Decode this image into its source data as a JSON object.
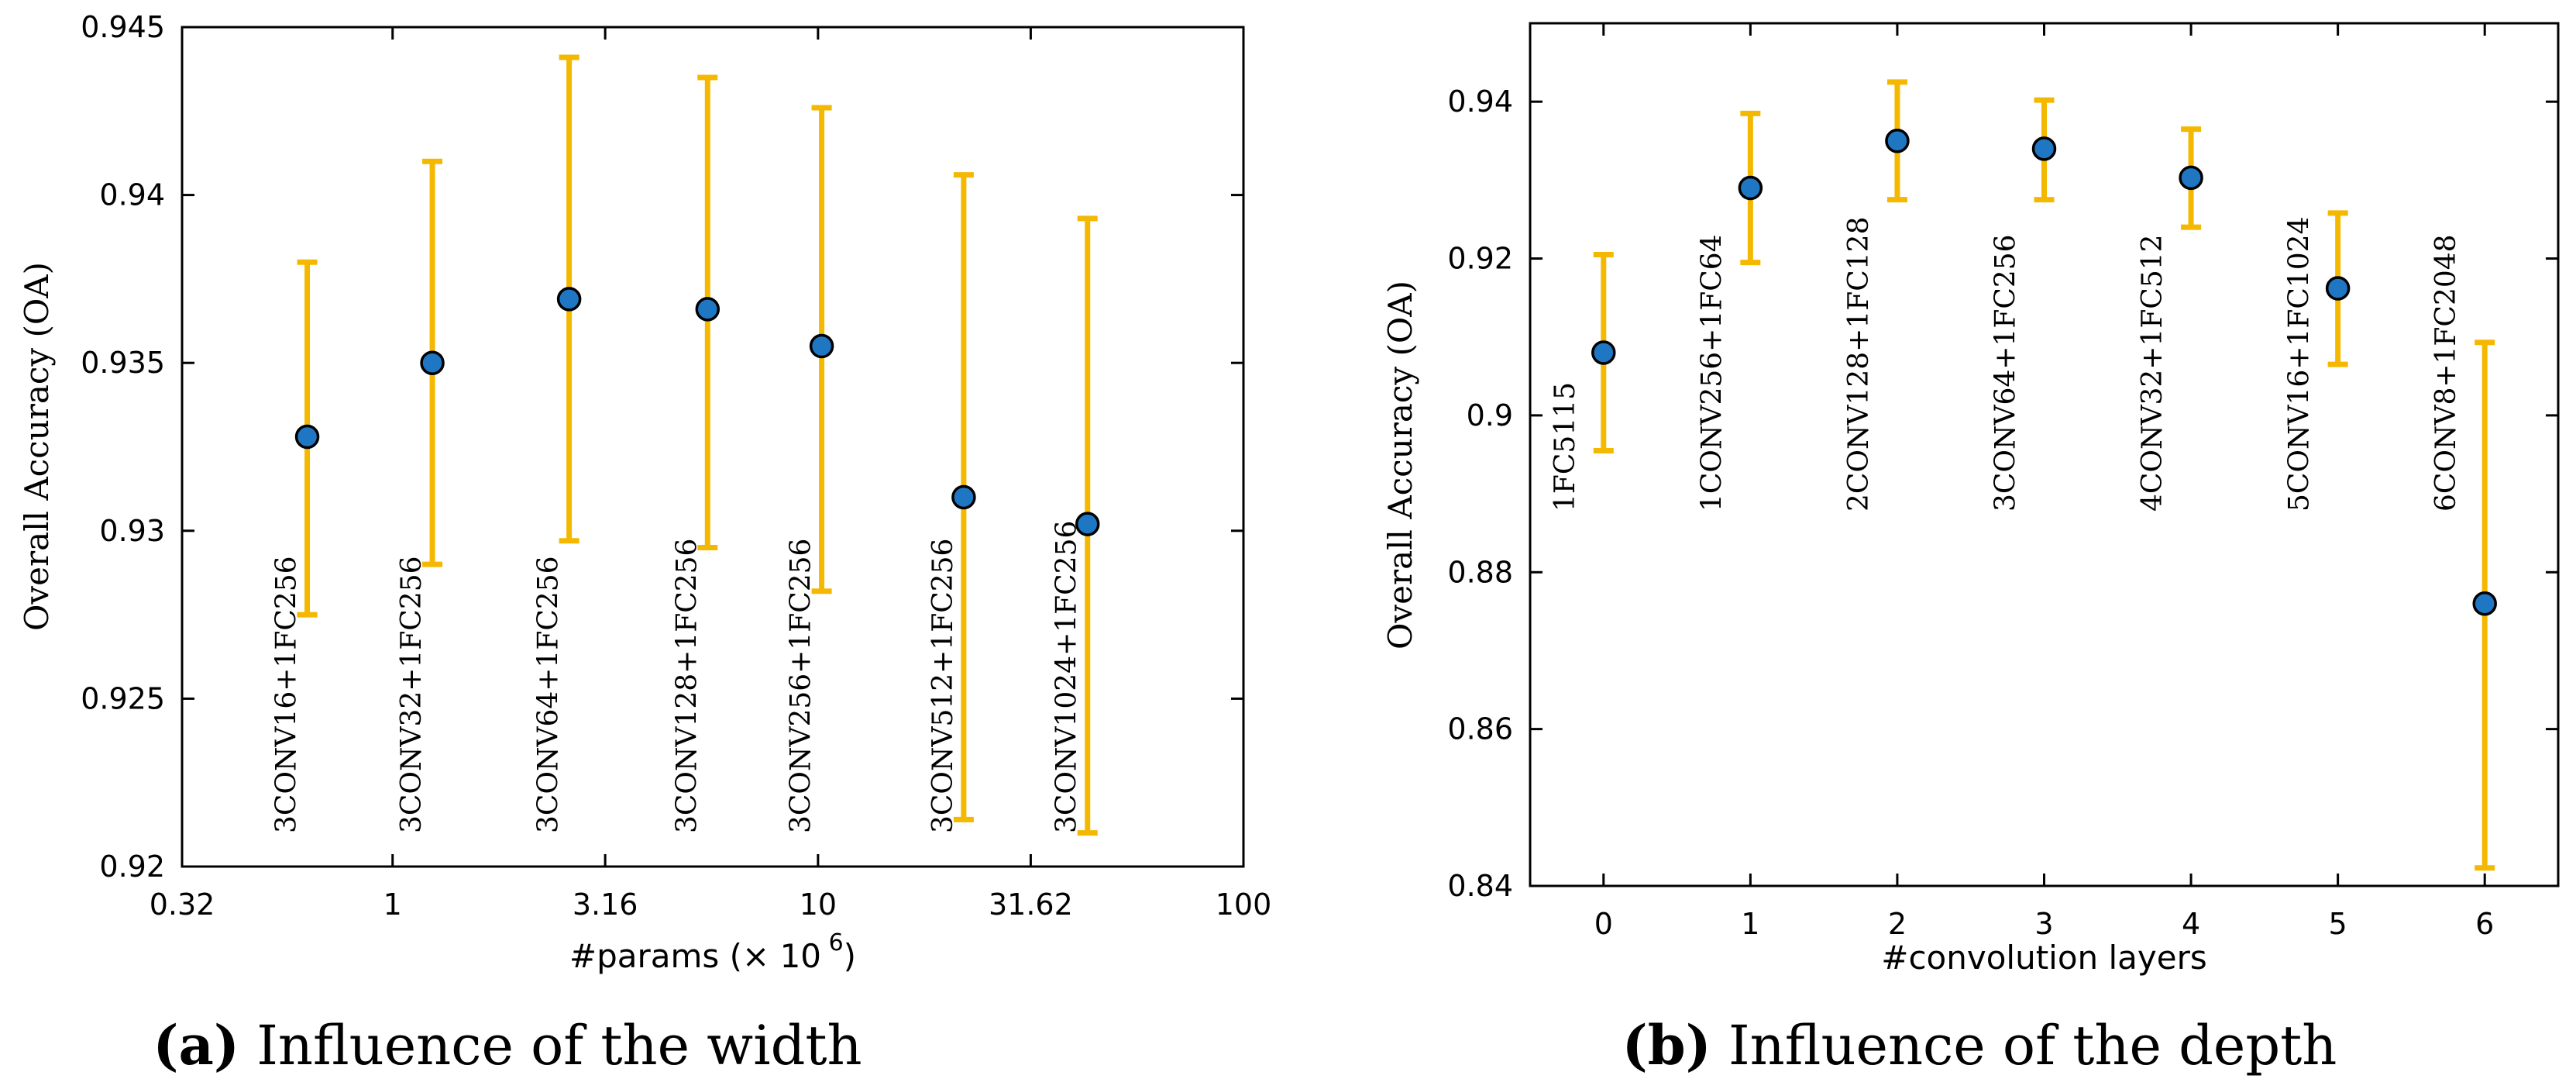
{
  "chart_data": [
    {
      "type": "scatter",
      "panel": "a",
      "caption_letter": "(a)",
      "caption_text": "Influence of the width",
      "xlabel": "#params (× 10",
      "xlabel_exponent": "6",
      "xlabel_suffix": ")",
      "ylabel": "Overall Accuracy (OA)",
      "xscale": "log",
      "xlim": [
        0.32,
        100
      ],
      "ylim": [
        0.92,
        0.945
      ],
      "xticks": [
        0.32,
        1,
        3.16,
        10,
        31.62,
        100
      ],
      "xtick_labels": [
        "0.32",
        "1",
        "3.16",
        "10",
        "31.62",
        "100"
      ],
      "yticks": [
        0.92,
        0.925,
        0.93,
        0.935,
        0.94,
        0.945
      ],
      "ytick_labels": [
        "0.92",
        "0.925",
        "0.93",
        "0.935",
        "0.94",
        "0.945"
      ],
      "marker_color": "#1f77c4",
      "errorbar_color": "#F5B800",
      "points": [
        {
          "x": 0.63,
          "y": 0.9328,
          "lower": 0.9275,
          "upper": 0.938,
          "label": "3CONV16+1FC256"
        },
        {
          "x": 1.24,
          "y": 0.935,
          "lower": 0.929,
          "upper": 0.941,
          "label": "3CONV32+1FC256"
        },
        {
          "x": 2.6,
          "y": 0.9369,
          "lower": 0.9297,
          "upper": 0.9441,
          "label": "3CONV64+1FC256"
        },
        {
          "x": 5.5,
          "y": 0.9366,
          "lower": 0.9295,
          "upper": 0.9435,
          "label": "3CONV128+1FC256"
        },
        {
          "x": 10.2,
          "y": 0.9355,
          "lower": 0.9282,
          "upper": 0.9426,
          "label": "3CONV256+1FC256"
        },
        {
          "x": 22.0,
          "y": 0.931,
          "lower": 0.9214,
          "upper": 0.9406,
          "label": "3CONV512+1FC256"
        },
        {
          "x": 43.0,
          "y": 0.9302,
          "lower": 0.921,
          "upper": 0.9393,
          "label": "3CONV1024+1FC256"
        }
      ]
    },
    {
      "type": "scatter",
      "panel": "b",
      "caption_letter": "(b)",
      "caption_text": "Influence of the depth",
      "xlabel": "#convolution layers",
      "ylabel": "Overall Accuracy (OA)",
      "xscale": "linear",
      "xlim": [
        -0.5,
        6.5
      ],
      "ylim": [
        0.84,
        0.95
      ],
      "xticks": [
        0,
        1,
        2,
        3,
        4,
        5,
        6
      ],
      "xtick_labels": [
        "0",
        "1",
        "2",
        "3",
        "4",
        "5",
        "6"
      ],
      "yticks": [
        0.84,
        0.86,
        0.88,
        0.9,
        0.92,
        0.94
      ],
      "ytick_labels": [
        "0.84",
        "0.86",
        "0.88",
        "0.9",
        "0.92",
        "0.94"
      ],
      "marker_color": "#1f77c4",
      "errorbar_color": "#F5B800",
      "points": [
        {
          "x": 0,
          "y": 0.908,
          "lower": 0.8955,
          "upper": 0.9205,
          "label": "1FC5115"
        },
        {
          "x": 1,
          "y": 0.929,
          "lower": 0.9195,
          "upper": 0.9385,
          "label": "1CONV256+1FC64"
        },
        {
          "x": 2,
          "y": 0.935,
          "lower": 0.9275,
          "upper": 0.9425,
          "label": "2CONV128+1FC128"
        },
        {
          "x": 3,
          "y": 0.934,
          "lower": 0.9275,
          "upper": 0.9402,
          "label": "3CONV64+1FC256"
        },
        {
          "x": 4,
          "y": 0.9303,
          "lower": 0.924,
          "upper": 0.9365,
          "label": "4CONV32+1FC512"
        },
        {
          "x": 5,
          "y": 0.9162,
          "lower": 0.9065,
          "upper": 0.9258,
          "label": "5CONV16+1FC1024"
        },
        {
          "x": 6,
          "y": 0.876,
          "lower": 0.8423,
          "upper": 0.9093,
          "label": "6CONV8+1FC2048"
        }
      ]
    }
  ]
}
